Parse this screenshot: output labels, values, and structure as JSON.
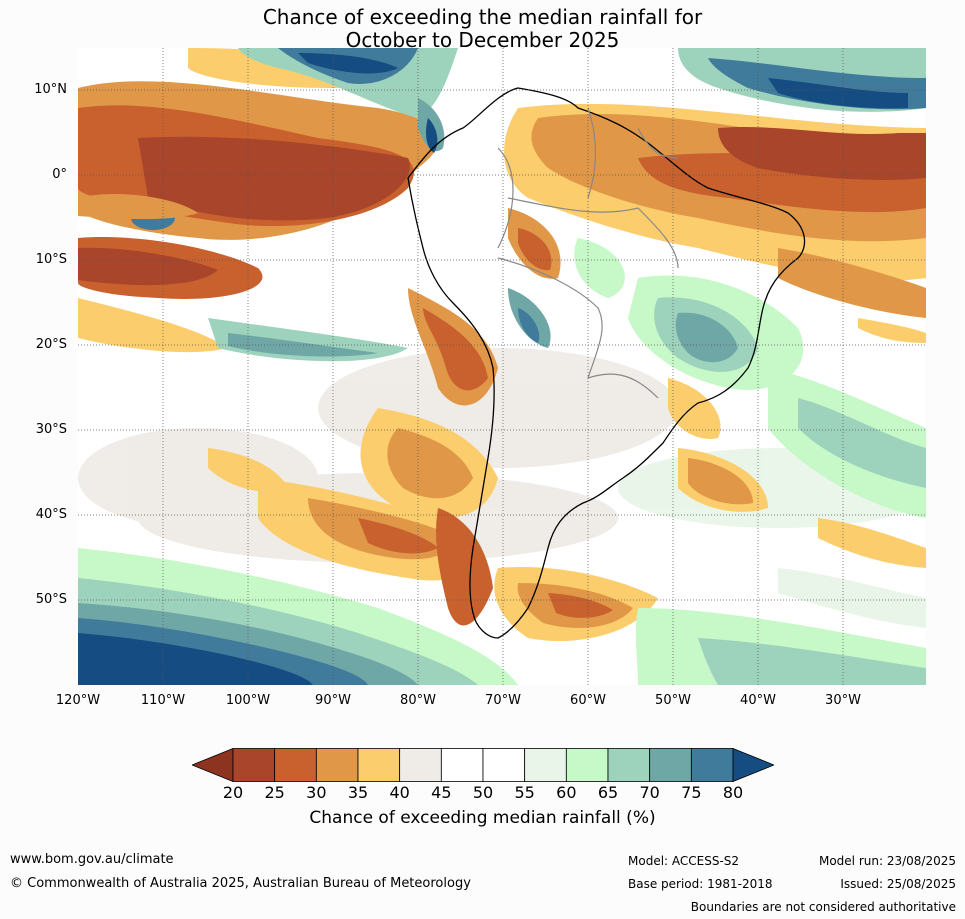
{
  "title": {
    "line1": "Chance of exceeding the median rainfall for",
    "line2": "October to December 2025"
  },
  "map": {
    "lat_labels": [
      "10°N",
      "0°",
      "10°S",
      "20°S",
      "30°S",
      "40°S",
      "50°S"
    ],
    "lon_labels": [
      "120°W",
      "110°W",
      "100°W",
      "90°W",
      "80°W",
      "70°W",
      "60°W",
      "50°W",
      "40°W",
      "30°W"
    ]
  },
  "colorbar": {
    "ticks": [
      "20",
      "25",
      "30",
      "35",
      "40",
      "45",
      "50",
      "55",
      "60",
      "65",
      "70",
      "75",
      "80"
    ],
    "colors": [
      "#a8452a",
      "#c9612f",
      "#e09848",
      "#fccd6c",
      "#efebe7",
      "#ffffff",
      "#ffffff",
      "#e9f5e9",
      "#c6f8c8",
      "#9dd3bc",
      "#6ea7a6",
      "#417b9c"
    ],
    "under_color": "#8d3420",
    "over_color": "#154c82",
    "label": "Chance of exceeding median rainfall (%)"
  },
  "footer": {
    "url": "www.bom.gov.au/climate",
    "copyright": "© Commonwealth of Australia 2025, Australian Bureau of Meteorology",
    "model": "Model: ACCESS-S2",
    "base_period": "Base period: 1981-2018",
    "model_run": "Model run: 23/08/2025",
    "issued": "Issued: 25/08/2025",
    "disclaimer": "Boundaries are not considered authoritative"
  }
}
